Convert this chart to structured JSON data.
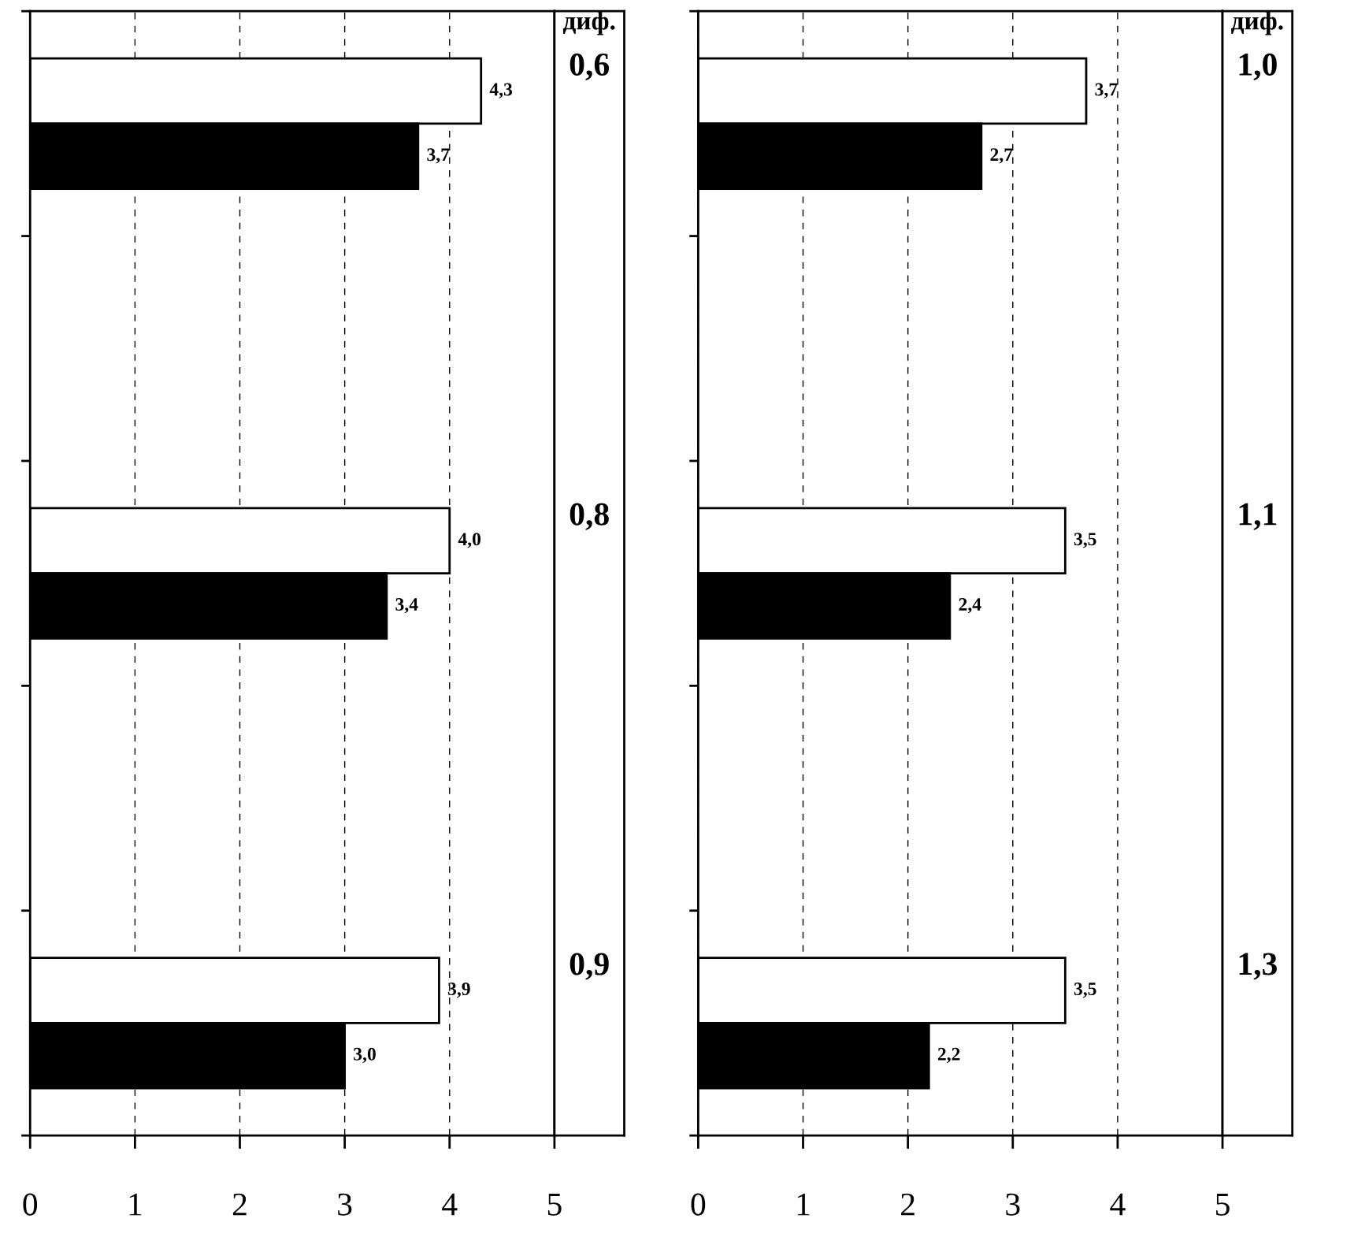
{
  "chart_data": [
    {
      "type": "bar",
      "orientation": "horizontal",
      "categories": [
        null,
        null,
        null,
        null,
        null
      ],
      "series": [
        {
          "color": "#ffffff",
          "values": [
            4.3,
            null,
            4.0,
            null,
            3.9
          ],
          "value_labels": [
            "4,3",
            null,
            "4,0",
            null,
            "3,9"
          ]
        },
        {
          "color": "#000000",
          "values": [
            3.7,
            null,
            3.4,
            null,
            3.0
          ],
          "value_labels": [
            "3,7",
            null,
            "3,4",
            null,
            "3,0"
          ]
        }
      ],
      "xlim": [
        0,
        5
      ],
      "xticks": [
        0,
        1,
        2,
        3,
        4,
        5
      ],
      "grid": "x",
      "annotations": [
        "диф.",
        "0,6",
        "0,8",
        "0,9"
      ]
    },
    {
      "type": "bar",
      "orientation": "horizontal",
      "categories": [
        null,
        null,
        null,
        null,
        null
      ],
      "series": [
        {
          "color": "#ffffff",
          "values": [
            3.7,
            null,
            3.5,
            null,
            3.5
          ],
          "value_labels": [
            "3,7",
            null,
            "3,5",
            null,
            "3,5"
          ]
        },
        {
          "color": "#000000",
          "values": [
            2.7,
            null,
            2.4,
            null,
            2.2
          ],
          "value_labels": [
            "2,7",
            null,
            "2,4",
            null,
            "2,2"
          ]
        }
      ],
      "xlim": [
        0,
        5
      ],
      "xticks": [
        0,
        1,
        2,
        3,
        4,
        5
      ],
      "grid": "x",
      "annotations": [
        "диф.",
        "1,0",
        "1,1",
        "1,3"
      ]
    }
  ]
}
